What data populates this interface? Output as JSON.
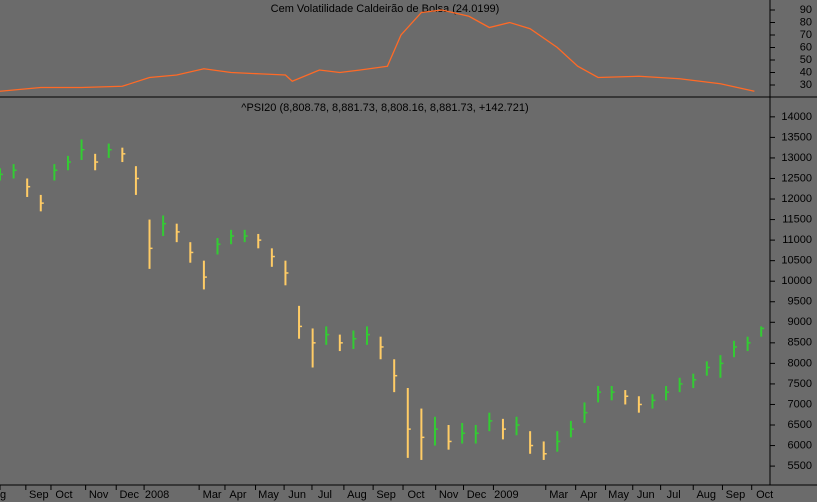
{
  "chart_data": [
    {
      "type": "line",
      "title": "Cem  Volatilidade Caldeirão de Bolsa (24.0199)",
      "color": "#ff6a26",
      "x": [
        0,
        6,
        12,
        18,
        22,
        26,
        30,
        34,
        38,
        42,
        43,
        47,
        50,
        53,
        57,
        59,
        62,
        65,
        69,
        72,
        75,
        78,
        82,
        85,
        88,
        94,
        100,
        106,
        111
      ],
      "values": [
        25,
        28,
        28,
        29,
        36,
        38,
        43,
        40,
        39,
        38,
        33,
        42,
        40,
        42,
        45,
        70,
        88,
        90,
        85,
        76,
        80,
        75,
        60,
        45,
        36,
        37,
        35,
        31,
        25
      ],
      "xlim": [
        0,
        113
      ],
      "ylim": [
        22,
        98
      ],
      "yticks": [
        30,
        40,
        50,
        60,
        70,
        80,
        90
      ]
    },
    {
      "type": "hlc",
      "title": "^PSI20 (8,808.78, 8,881.73, 8,808.16, 8,881.73, +142.721)",
      "up_color": "#33cc33",
      "down_color": "#ffcc66",
      "x": [
        0,
        2,
        4,
        6,
        8,
        10,
        12,
        14,
        16,
        18,
        20,
        22,
        24,
        26,
        28,
        30,
        32,
        34,
        36,
        38,
        40,
        42,
        44,
        46,
        48,
        50,
        52,
        54,
        56,
        58,
        60,
        62,
        64,
        66,
        68,
        70,
        72,
        74,
        76,
        78,
        80,
        82,
        84,
        86,
        88,
        90,
        92,
        94,
        96,
        98,
        100,
        102,
        104,
        106,
        108,
        110,
        112
      ],
      "close": [
        12600,
        12700,
        12300,
        11900,
        12700,
        12900,
        13200,
        12900,
        13200,
        13100,
        12500,
        10800,
        11400,
        11200,
        10700,
        10100,
        10900,
        11100,
        11100,
        11000,
        10600,
        10200,
        8900,
        8500,
        8700,
        8500,
        8600,
        8700,
        8400,
        7700,
        6400,
        6200,
        6400,
        6100,
        6300,
        6300,
        6600,
        6400,
        6500,
        6000,
        5800,
        6100,
        6400,
        6800,
        7300,
        7300,
        7200,
        7000,
        7100,
        7300,
        7500,
        7600,
        7900,
        8000,
        8400,
        8500,
        8850
      ],
      "high": [
        12750,
        12850,
        12500,
        12100,
        12850,
        13050,
        13450,
        13100,
        13350,
        13250,
        12800,
        11500,
        11600,
        11400,
        10950,
        10500,
        11050,
        11250,
        11250,
        11150,
        10800,
        10500,
        9400,
        8850,
        8900,
        8700,
        8800,
        8900,
        8650,
        8100,
        7400,
        6900,
        6700,
        6500,
        6550,
        6500,
        6800,
        6650,
        6700,
        6350,
        6100,
        6350,
        6600,
        7050,
        7450,
        7450,
        7350,
        7200,
        7250,
        7450,
        7650,
        7750,
        8050,
        8200,
        8550,
        8650,
        8900
      ],
      "low": [
        12450,
        12500,
        12050,
        11700,
        12450,
        12700,
        12950,
        12700,
        13000,
        12900,
        12100,
        10300,
        11100,
        10950,
        10450,
        9800,
        10650,
        10900,
        10950,
        10800,
        10350,
        9900,
        8600,
        7900,
        8450,
        8300,
        8350,
        8450,
        8100,
        7300,
        5700,
        5650,
        6000,
        5900,
        6050,
        6050,
        6350,
        6150,
        6250,
        5800,
        5650,
        5850,
        6200,
        6550,
        7050,
        7100,
        7000,
        6800,
        6900,
        7100,
        7300,
        7400,
        7700,
        7650,
        8150,
        8300,
        8650
      ],
      "xlim": [
        0,
        113
      ],
      "ylim": [
        5040,
        14410
      ],
      "yticks": [
        5500,
        6000,
        6500,
        7000,
        7500,
        8000,
        8500,
        9000,
        9500,
        10000,
        10500,
        11000,
        11500,
        12000,
        12500,
        13000,
        13500,
        14000
      ],
      "xticks": [
        {
          "value": 0,
          "label": "g"
        },
        {
          "value": 3.8,
          "label": "Sep"
        },
        {
          "value": 7.5,
          "label": "Oct"
        },
        {
          "value": 12.6,
          "label": "Nov"
        },
        {
          "value": 17.1,
          "label": "Dec"
        },
        {
          "value": 21.2,
          "label": "2008"
        },
        {
          "value": 29.3,
          "label": "Mar"
        },
        {
          "value": 33.1,
          "label": "Apr"
        },
        {
          "value": 37.6,
          "label": "May"
        },
        {
          "value": 41.8,
          "label": "Jun"
        },
        {
          "value": 45.9,
          "label": "Jul"
        },
        {
          "value": 50.6,
          "label": "Aug"
        },
        {
          "value": 54.9,
          "label": "Sep"
        },
        {
          "value": 59.3,
          "label": "Oct"
        },
        {
          "value": 64.1,
          "label": "Nov"
        },
        {
          "value": 68.2,
          "label": "Dec"
        },
        {
          "value": 72.6,
          "label": "2009"
        },
        {
          "value": 80.3,
          "label": "Mar"
        },
        {
          "value": 84.7,
          "label": "Apr"
        },
        {
          "value": 89.1,
          "label": "May"
        },
        {
          "value": 93.1,
          "label": "Jun"
        },
        {
          "value": 97.2,
          "label": "Jul"
        },
        {
          "value": 102,
          "label": "Aug"
        },
        {
          "value": 106.3,
          "label": "Sep"
        },
        {
          "value": 110.6,
          "label": "Oct"
        }
      ]
    }
  ]
}
